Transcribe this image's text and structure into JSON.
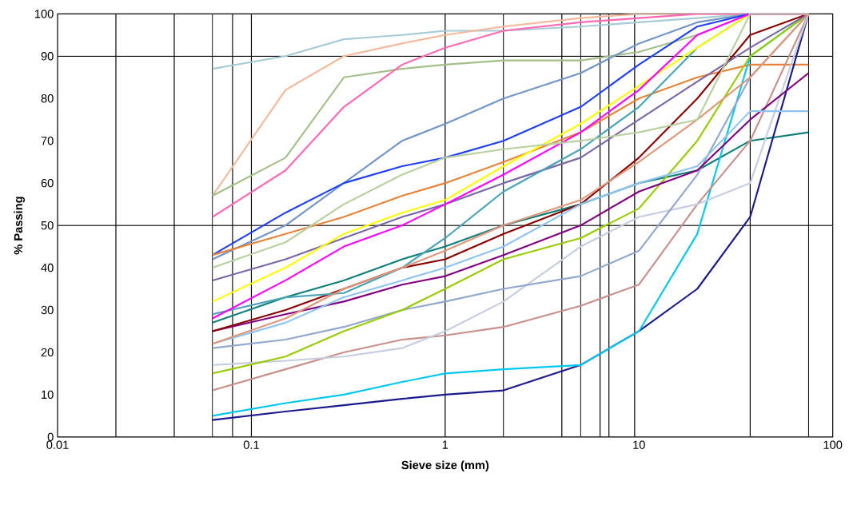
{
  "chart_data": {
    "type": "line",
    "xlabel": "Sieve size (mm)",
    "ylabel": "% Passing",
    "log": "x",
    "grid": false,
    "marker": "none",
    "line_style": "solid",
    "xlim": [
      0.01,
      100
    ],
    "ylim": [
      0,
      100
    ],
    "xticks": [
      0.01,
      0.1,
      1,
      10,
      100
    ],
    "yticks": [
      0,
      10,
      20,
      30,
      40,
      50,
      60,
      70,
      80,
      90,
      100
    ],
    "x": [
      0.063,
      0.15,
      0.3,
      0.6,
      1,
      2,
      5,
      10,
      20,
      37.5,
      75
    ],
    "ref_lines": [
      {
        "axis": "x",
        "value": 0.02,
        "color": "#000000"
      },
      {
        "axis": "x",
        "value": 0.04,
        "color": "#000000"
      },
      {
        "axis": "x",
        "value": 0.063,
        "color": "#000000"
      },
      {
        "axis": "x",
        "value": 0.08,
        "color": "#000000"
      },
      {
        "axis": "x",
        "value": 0.1,
        "color": "#000000"
      },
      {
        "axis": "x",
        "value": 1,
        "color": "#000000"
      },
      {
        "axis": "x",
        "value": 2,
        "color": "#000000"
      },
      {
        "axis": "x",
        "value": 4,
        "color": "#000000"
      },
      {
        "axis": "x",
        "value": 5,
        "color": "#000000"
      },
      {
        "axis": "x",
        "value": 6.3,
        "color": "#000000"
      },
      {
        "axis": "x",
        "value": 7,
        "color": "#000000"
      },
      {
        "axis": "x",
        "value": 9.5,
        "color": "#000000"
      },
      {
        "axis": "x",
        "value": 37.5,
        "color": "#000000"
      },
      {
        "axis": "x",
        "value": 75,
        "color": "#000000"
      },
      {
        "axis": "y",
        "value": 50,
        "color": "#000000"
      },
      {
        "axis": "y",
        "value": 90,
        "color": "#000000"
      }
    ],
    "series": [
      {
        "color": "#a8ccd7",
        "values": [
          87,
          90,
          94,
          95,
          96,
          96,
          97,
          98,
          99,
          100,
          100
        ]
      },
      {
        "color": "#f4b89a",
        "values": [
          57,
          82,
          90,
          93,
          95,
          97,
          99,
          100,
          100,
          100,
          100
        ]
      },
      {
        "color": "#a4c08a",
        "values": [
          57,
          66,
          85,
          87,
          88,
          89,
          89,
          91,
          95,
          100,
          100
        ]
      },
      {
        "color": "#ff69b4",
        "values": [
          52,
          63,
          78,
          88,
          92,
          96,
          98,
          99,
          100,
          100,
          100
        ]
      },
      {
        "color": "#7295c7",
        "values": [
          42,
          50,
          60,
          70,
          74,
          80,
          86,
          93,
          98,
          100,
          100
        ]
      },
      {
        "color": "#1f3fff",
        "values": [
          43,
          53,
          60,
          64,
          66,
          70,
          78,
          88,
          97,
          100,
          100
        ]
      },
      {
        "color": "#e8833a",
        "values": [
          43,
          48,
          52,
          57,
          60,
          65,
          72,
          80,
          85,
          88,
          88
        ]
      },
      {
        "color": "#0f7f7a",
        "values": [
          27,
          33,
          37,
          42,
          45,
          50,
          55,
          60,
          63,
          70,
          72
        ]
      },
      {
        "color": "#1a1a8c",
        "values": [
          4,
          6,
          7.5,
          9,
          10,
          11,
          17,
          25,
          35,
          52,
          100
        ]
      },
      {
        "color": "#00c8f0",
        "values": [
          5,
          8,
          10,
          13,
          15,
          16,
          17,
          25,
          48,
          90,
          100
        ]
      },
      {
        "color": "#c8908a",
        "values": [
          11,
          16,
          20,
          23,
          24,
          26,
          31,
          36,
          55,
          70,
          100
        ]
      },
      {
        "color": "#c5cde0",
        "values": [
          17,
          18,
          19,
          21,
          25,
          32,
          45,
          52,
          55,
          60,
          100
        ]
      },
      {
        "color": "#90a8cc",
        "values": [
          21,
          23,
          26,
          30,
          32,
          35,
          38,
          44,
          62,
          85,
          100
        ]
      },
      {
        "color": "#99cc00",
        "values": [
          15,
          19,
          25,
          30,
          35,
          42,
          47,
          54,
          70,
          90,
          100
        ]
      },
      {
        "color": "#800080",
        "values": [
          25,
          29,
          32,
          36,
          38,
          43,
          50,
          58,
          63,
          75,
          86
        ]
      },
      {
        "color": "#8b0000",
        "values": [
          25,
          30,
          35,
          40,
          42,
          48,
          55,
          66,
          80,
          95,
          100
        ]
      },
      {
        "color": "#7a68a6",
        "values": [
          37,
          42,
          47,
          52,
          55,
          60,
          66,
          75,
          84,
          92,
          100
        ]
      },
      {
        "color": "#4aa4b8",
        "values": [
          29,
          33,
          34,
          40,
          47,
          58,
          68,
          78,
          92,
          100,
          100
        ]
      },
      {
        "color": "#ffff00",
        "values": [
          32,
          40,
          48,
          53,
          56,
          64,
          74,
          83,
          92,
          100,
          100
        ]
      },
      {
        "color": "#ff00ff",
        "values": [
          28,
          37,
          45,
          50,
          55,
          62,
          72,
          82,
          95,
          100,
          100
        ]
      },
      {
        "color": "#8fc4f0",
        "values": [
          22,
          27,
          33,
          37,
          40,
          45,
          55,
          60,
          64,
          77,
          77
        ]
      },
      {
        "color": "#e0967a",
        "values": [
          22,
          28,
          35,
          40,
          44,
          50,
          56,
          65,
          75,
          85,
          100
        ]
      },
      {
        "color": "#b8d0a0",
        "values": [
          40,
          46,
          55,
          62,
          66,
          68,
          70,
          72,
          75,
          100,
          100
        ]
      }
    ]
  }
}
